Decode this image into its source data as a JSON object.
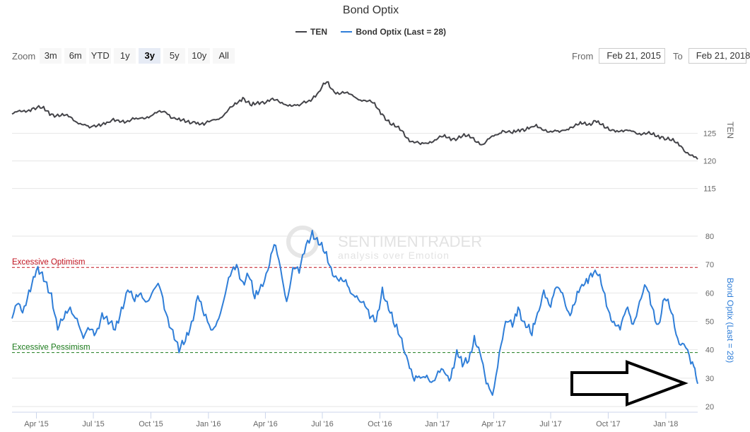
{
  "chart_title": "Bond Optix",
  "legend": [
    {
      "label": "TEN",
      "color": "#434348"
    },
    {
      "label": "Bond Optix (Last = 28)",
      "color": "#2f7ed8"
    }
  ],
  "zoom": {
    "label": "Zoom",
    "buttons": [
      "3m",
      "6m",
      "YTD",
      "1y",
      "3y",
      "5y",
      "10y",
      "All"
    ],
    "active": "3y"
  },
  "range": {
    "from_label": "From",
    "from_value": "Feb 21, 2015",
    "to_label": "To",
    "to_value": "Feb 21, 2018"
  },
  "watermark": {
    "name": "SENTIMENTRADER",
    "tagline": "analysis over Emotion"
  },
  "annotation": {
    "label": "arrow-pointing-to-last-value"
  },
  "chart_data": [
    {
      "type": "line",
      "series_name": "TEN",
      "yaxis_title": "TEN",
      "ylim": [
        112,
        137
      ],
      "yticks": [
        115,
        120,
        125
      ],
      "color": "#434348",
      "points": [
        [
          "2015-02-21",
          128.5
        ],
        [
          "2015-03-10",
          129.0
        ],
        [
          "2015-03-25",
          129.5
        ],
        [
          "2015-04-10",
          129.6
        ],
        [
          "2015-04-25",
          128.5
        ],
        [
          "2015-05-10",
          128.2
        ],
        [
          "2015-05-25",
          128.0
        ],
        [
          "2015-06-10",
          126.8
        ],
        [
          "2015-06-25",
          126.0
        ],
        [
          "2015-07-10",
          126.7
        ],
        [
          "2015-07-25",
          127.0
        ],
        [
          "2015-08-10",
          127.4
        ],
        [
          "2015-08-25",
          127.3
        ],
        [
          "2015-09-10",
          127.6
        ],
        [
          "2015-09-25",
          128.0
        ],
        [
          "2015-10-10",
          128.7
        ],
        [
          "2015-10-25",
          128.8
        ],
        [
          "2015-11-10",
          127.6
        ],
        [
          "2015-11-25",
          127.0
        ],
        [
          "2015-12-10",
          127.1
        ],
        [
          "2015-12-25",
          126.5
        ],
        [
          "2016-01-10",
          127.5
        ],
        [
          "2016-01-25",
          128.2
        ],
        [
          "2016-02-10",
          130.0
        ],
        [
          "2016-02-25",
          131.5
        ],
        [
          "2016-03-10",
          130.0
        ],
        [
          "2016-03-25",
          130.6
        ],
        [
          "2016-04-10",
          131.2
        ],
        [
          "2016-04-25",
          130.5
        ],
        [
          "2016-05-10",
          130.2
        ],
        [
          "2016-05-25",
          130.0
        ],
        [
          "2016-06-10",
          131.0
        ],
        [
          "2016-06-25",
          132.5
        ],
        [
          "2016-07-08",
          134.3
        ],
        [
          "2016-07-20",
          132.5
        ],
        [
          "2016-08-05",
          132.3
        ],
        [
          "2016-08-20",
          131.7
        ],
        [
          "2016-09-05",
          131.0
        ],
        [
          "2016-09-20",
          130.5
        ],
        [
          "2016-10-05",
          128.5
        ],
        [
          "2016-10-20",
          126.5
        ],
        [
          "2016-11-05",
          125.5
        ],
        [
          "2016-11-20",
          123.5
        ],
        [
          "2016-12-05",
          123.0
        ],
        [
          "2016-12-20",
          123.5
        ],
        [
          "2017-01-10",
          124.4
        ],
        [
          "2017-01-25",
          124.0
        ],
        [
          "2017-02-10",
          124.5
        ],
        [
          "2017-02-25",
          124.2
        ],
        [
          "2017-03-15",
          123.0
        ],
        [
          "2017-04-01",
          124.5
        ],
        [
          "2017-04-15",
          125.5
        ],
        [
          "2017-05-01",
          125.0
        ],
        [
          "2017-05-15",
          125.7
        ],
        [
          "2017-06-01",
          126.2
        ],
        [
          "2017-06-15",
          126.0
        ],
        [
          "2017-07-01",
          125.4
        ],
        [
          "2017-07-15",
          125.2
        ],
        [
          "2017-08-01",
          126.1
        ],
        [
          "2017-08-15",
          126.6
        ],
        [
          "2017-09-01",
          126.8
        ],
        [
          "2017-09-10",
          127.3
        ],
        [
          "2017-09-25",
          126.0
        ],
        [
          "2017-10-10",
          125.6
        ],
        [
          "2017-10-25",
          125.3
        ],
        [
          "2017-11-10",
          125.4
        ],
        [
          "2017-11-25",
          124.9
        ],
        [
          "2017-12-10",
          124.8
        ],
        [
          "2017-12-25",
          124.4
        ],
        [
          "2018-01-10",
          123.7
        ],
        [
          "2018-01-25",
          122.7
        ],
        [
          "2018-02-05",
          121.5
        ],
        [
          "2018-02-15",
          120.7
        ],
        [
          "2018-02-21",
          120.3
        ]
      ]
    },
    {
      "type": "line",
      "series_name": "Bond Optix",
      "yaxis_title": "Bond Optix (Last = 28)",
      "ylim": [
        18,
        84
      ],
      "yticks": [
        20,
        30,
        40,
        50,
        60,
        70,
        80
      ],
      "color": "#2f7ed8",
      "points": [
        [
          "2015-02-21",
          51
        ],
        [
          "2015-03-01",
          56
        ],
        [
          "2015-03-10",
          53
        ],
        [
          "2015-03-20",
          61
        ],
        [
          "2015-04-01",
          68
        ],
        [
          "2015-04-15",
          64
        ],
        [
          "2015-04-25",
          60
        ],
        [
          "2015-05-05",
          47
        ],
        [
          "2015-05-15",
          51
        ],
        [
          "2015-05-25",
          55
        ],
        [
          "2015-06-05",
          51
        ],
        [
          "2015-06-15",
          44
        ],
        [
          "2015-06-25",
          47
        ],
        [
          "2015-07-05",
          46
        ],
        [
          "2015-07-15",
          53
        ],
        [
          "2015-07-25",
          49
        ],
        [
          "2015-08-05",
          47
        ],
        [
          "2015-08-15",
          55
        ],
        [
          "2015-08-25",
          61
        ],
        [
          "2015-09-05",
          57
        ],
        [
          "2015-09-15",
          60
        ],
        [
          "2015-09-25",
          57
        ],
        [
          "2015-10-05",
          61
        ],
        [
          "2015-10-15",
          62
        ],
        [
          "2015-10-25",
          53
        ],
        [
          "2015-11-05",
          47
        ],
        [
          "2015-11-15",
          39
        ],
        [
          "2015-11-25",
          43
        ],
        [
          "2015-12-05",
          50
        ],
        [
          "2015-12-15",
          59
        ],
        [
          "2015-12-25",
          52
        ],
        [
          "2016-01-05",
          47
        ],
        [
          "2016-01-15",
          50
        ],
        [
          "2016-01-25",
          57
        ],
        [
          "2016-02-05",
          66
        ],
        [
          "2016-02-15",
          70
        ],
        [
          "2016-02-25",
          64
        ],
        [
          "2016-03-05",
          66
        ],
        [
          "2016-03-15",
          58
        ],
        [
          "2016-03-25",
          63
        ],
        [
          "2016-04-05",
          68
        ],
        [
          "2016-04-15",
          77
        ],
        [
          "2016-04-25",
          69
        ],
        [
          "2016-05-05",
          57
        ],
        [
          "2016-05-15",
          69
        ],
        [
          "2016-05-25",
          67
        ],
        [
          "2016-06-05",
          77
        ],
        [
          "2016-06-15",
          82
        ],
        [
          "2016-06-25",
          77
        ],
        [
          "2016-07-05",
          74
        ],
        [
          "2016-07-15",
          69
        ],
        [
          "2016-07-25",
          65
        ],
        [
          "2016-08-05",
          64
        ],
        [
          "2016-08-15",
          60
        ],
        [
          "2016-08-25",
          59
        ],
        [
          "2016-09-05",
          57
        ],
        [
          "2016-09-15",
          51
        ],
        [
          "2016-09-25",
          50
        ],
        [
          "2016-10-05",
          62
        ],
        [
          "2016-10-15",
          54
        ],
        [
          "2016-10-25",
          48
        ],
        [
          "2016-11-05",
          44
        ],
        [
          "2016-11-15",
          36
        ],
        [
          "2016-11-25",
          29
        ],
        [
          "2016-12-05",
          30
        ],
        [
          "2016-12-15",
          31
        ],
        [
          "2016-12-25",
          29
        ],
        [
          "2017-01-10",
          33
        ],
        [
          "2017-01-20",
          29
        ],
        [
          "2017-02-01",
          40
        ],
        [
          "2017-02-10",
          34
        ],
        [
          "2017-02-20",
          36
        ],
        [
          "2017-03-01",
          45
        ],
        [
          "2017-03-10",
          39
        ],
        [
          "2017-03-20",
          28
        ],
        [
          "2017-03-30",
          24
        ],
        [
          "2017-04-10",
          39
        ],
        [
          "2017-04-20",
          50
        ],
        [
          "2017-05-01",
          48
        ],
        [
          "2017-05-10",
          55
        ],
        [
          "2017-05-20",
          50
        ],
        [
          "2017-06-01",
          45
        ],
        [
          "2017-06-10",
          53
        ],
        [
          "2017-06-20",
          61
        ],
        [
          "2017-07-01",
          55
        ],
        [
          "2017-07-10",
          62
        ],
        [
          "2017-07-20",
          60
        ],
        [
          "2017-08-01",
          52
        ],
        [
          "2017-08-10",
          57
        ],
        [
          "2017-08-20",
          63
        ],
        [
          "2017-09-01",
          66
        ],
        [
          "2017-09-10",
          68
        ],
        [
          "2017-09-20",
          63
        ],
        [
          "2017-10-01",
          54
        ],
        [
          "2017-10-10",
          50
        ],
        [
          "2017-10-20",
          47
        ],
        [
          "2017-11-01",
          55
        ],
        [
          "2017-11-10",
          49
        ],
        [
          "2017-11-20",
          57
        ],
        [
          "2017-12-01",
          62
        ],
        [
          "2017-12-10",
          55
        ],
        [
          "2017-12-20",
          49
        ],
        [
          "2017-12-30",
          58
        ],
        [
          "2018-01-10",
          53
        ],
        [
          "2018-01-20",
          44
        ],
        [
          "2018-01-30",
          42
        ],
        [
          "2018-02-05",
          40
        ],
        [
          "2018-02-10",
          35
        ],
        [
          "2018-02-15",
          34
        ],
        [
          "2018-02-18",
          31
        ],
        [
          "2018-02-21",
          28
        ]
      ]
    }
  ],
  "x_axis": {
    "start": "2015-02-21",
    "end": "2018-02-21",
    "ticks": [
      [
        "2015-04-01",
        "Apr '15"
      ],
      [
        "2015-07-01",
        "Jul '15"
      ],
      [
        "2015-10-01",
        "Oct '15"
      ],
      [
        "2016-01-01",
        "Jan '16"
      ],
      [
        "2016-04-01",
        "Apr '16"
      ],
      [
        "2016-07-01",
        "Jul '16"
      ],
      [
        "2016-10-01",
        "Oct '16"
      ],
      [
        "2017-01-01",
        "Jan '17"
      ],
      [
        "2017-04-01",
        "Apr '17"
      ],
      [
        "2017-07-01",
        "Jul '17"
      ],
      [
        "2017-10-01",
        "Oct '17"
      ],
      [
        "2018-01-01",
        "Jan '18"
      ]
    ]
  },
  "reference_lines": [
    {
      "label": "Excessive Optimism",
      "value": 69,
      "color": "#c1121f"
    },
    {
      "label": "Excessive Pessimism",
      "value": 39,
      "color": "#1a7a1a"
    }
  ]
}
